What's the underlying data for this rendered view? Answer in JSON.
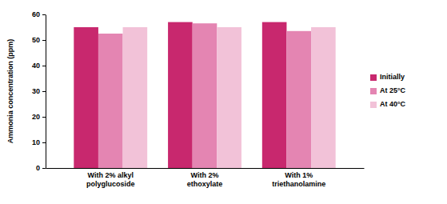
{
  "chart_data": {
    "type": "bar",
    "y_label": "Ammonia concentration (ppm)",
    "categories": [
      "With 2% alkyl polyglucoside",
      "With 2% ethoxylate",
      "With 1% triethanolamine"
    ],
    "series": [
      {
        "name": "Initially",
        "color": "#c8286e",
        "values": [
          55,
          57,
          57
        ]
      },
      {
        "name": "At 25°C",
        "color": "#e485b2",
        "values": [
          52.5,
          56.5,
          53.5
        ]
      },
      {
        "name": "At 40°C",
        "color": "#f2c2d8",
        "values": [
          55,
          55,
          55
        ]
      }
    ],
    "ylim": [
      0,
      60
    ],
    "yticks": [
      0,
      10,
      20,
      30,
      40,
      50,
      60
    ],
    "grid": false,
    "legend": "right"
  }
}
